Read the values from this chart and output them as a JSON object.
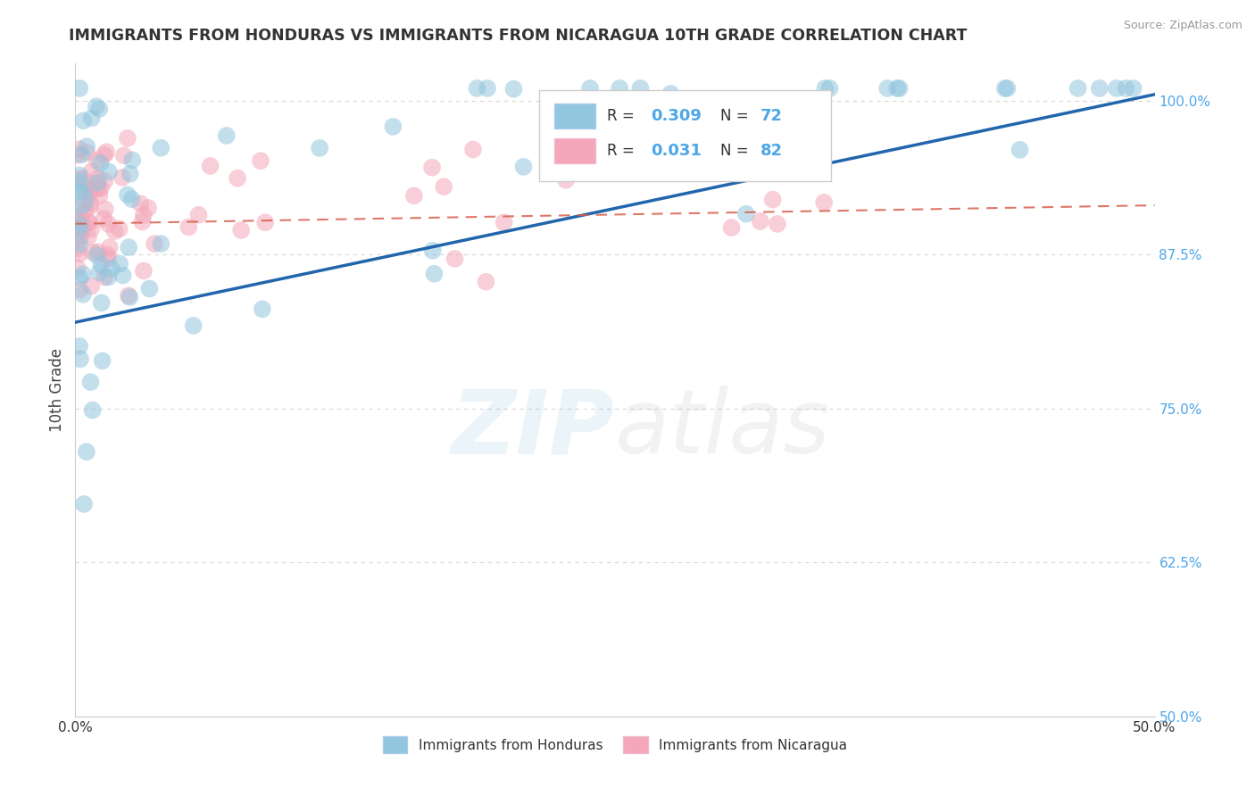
{
  "title": "IMMIGRANTS FROM HONDURAS VS IMMIGRANTS FROM NICARAGUA 10TH GRADE CORRELATION CHART",
  "source": "Source: ZipAtlas.com",
  "ylabel": "10th Grade",
  "xlim": [
    0.0,
    50.0
  ],
  "ylim": [
    50.0,
    103.0
  ],
  "yticks": [
    50.0,
    62.5,
    75.0,
    87.5,
    100.0
  ],
  "xticks": [
    0.0,
    10.0,
    20.0,
    30.0,
    40.0,
    50.0
  ],
  "color_blue": "#92c5de",
  "color_pink": "#f4a7b9",
  "line_blue": "#2166ac",
  "line_pink": "#d6604d",
  "blue_trendline_x": [
    0.0,
    50.0
  ],
  "blue_trendline_y": [
    82.0,
    100.5
  ],
  "pink_trendline_x": [
    0.0,
    50.0
  ],
  "pink_trendline_y": [
    90.0,
    91.5
  ],
  "background_color": "#ffffff",
  "grid_color": "#cccccc",
  "tick_color": "#4da6e8",
  "watermark_zip_color": "#92c5de",
  "watermark_atlas_color": "#bbbbbb"
}
